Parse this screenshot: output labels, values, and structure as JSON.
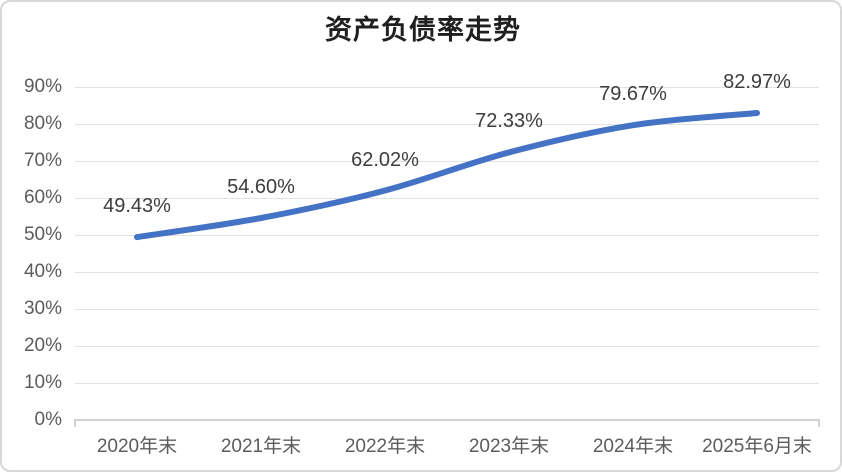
{
  "chart_data": {
    "type": "line",
    "title": "资产负债率走势",
    "categories": [
      "2020年末",
      "2021年末",
      "2022年末",
      "2023年末",
      "2024年末",
      "2025年6月末"
    ],
    "values": [
      49.43,
      54.6,
      62.02,
      72.33,
      79.67,
      82.97
    ],
    "data_labels": [
      "49.43%",
      "54.60%",
      "62.02%",
      "72.33%",
      "79.67%",
      "82.97%"
    ],
    "y_tick_labels": [
      "0%",
      "10%",
      "20%",
      "30%",
      "40%",
      "50%",
      "60%",
      "70%",
      "80%",
      "90%"
    ],
    "ylim": [
      0,
      90
    ],
    "y_tick_step": 10,
    "grid": true,
    "legend": "none",
    "colors": {
      "line": "#4472c4",
      "title_text": "#1f1f1f",
      "data_label_text": "#3d3d3d",
      "axis_label_text": "#5c5c5c",
      "gridline": "#e2e2e2",
      "axis_line": "#d2d2d2",
      "card_border": "#d8d8d8",
      "background": "#ffffff"
    }
  }
}
